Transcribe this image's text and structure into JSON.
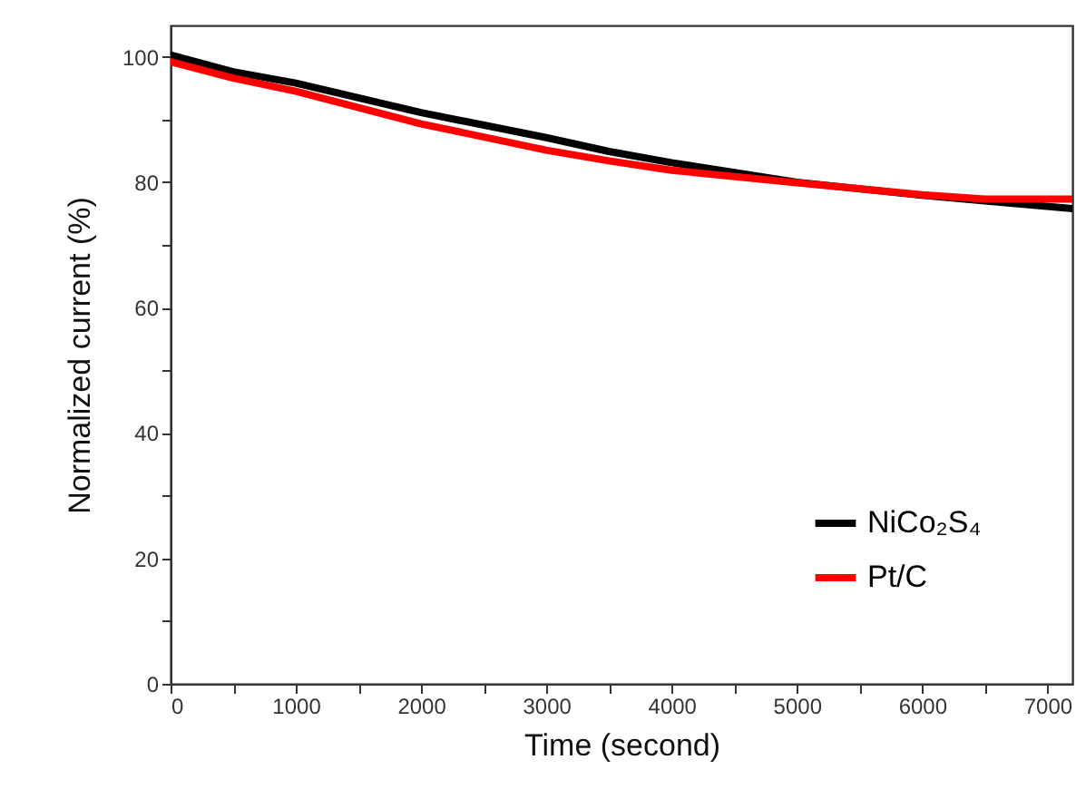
{
  "chart_data": {
    "type": "line",
    "xlabel": "Time (second)",
    "ylabel": "Normalized current (%)",
    "x": [
      0,
      500,
      1000,
      2000,
      3000,
      3500,
      4000,
      5000,
      6000,
      6500,
      7200
    ],
    "series": [
      {
        "name": "NiCo₂S₄",
        "color": "#000000",
        "values": [
          100.3,
          97.6,
          95.8,
          91.1,
          87.1,
          84.9,
          83.1,
          80.0,
          77.9,
          77.0,
          75.8
        ]
      },
      {
        "name": "Pt/C",
        "color": "#ff0000",
        "values": [
          99.2,
          96.6,
          94.5,
          89.3,
          85.1,
          83.4,
          81.9,
          79.9,
          78.0,
          77.3,
          77.3
        ]
      }
    ],
    "xlim": [
      0,
      7200
    ],
    "xticks": [
      0,
      {
        "value": 500,
        "label": null
      },
      1000,
      {
        "value": 1500,
        "label": null
      },
      2000,
      {
        "value": 2500,
        "label": null
      },
      3000,
      {
        "value": 3500,
        "label": null
      },
      4000,
      {
        "value": 4500,
        "label": null
      },
      5000,
      {
        "value": 5500,
        "label": null
      },
      6000,
      {
        "value": 6500,
        "label": null
      },
      7000
    ],
    "ylim": [
      0,
      105
    ],
    "yticks": [
      0,
      {
        "value": 10,
        "label": null
      },
      20,
      {
        "value": 30,
        "label": null
      },
      40,
      {
        "value": 50,
        "label": null
      },
      60,
      {
        "value": 70,
        "label": null
      },
      80,
      {
        "value": 90,
        "label": null
      },
      100
    ],
    "grid": false,
    "legend": "bottom right",
    "marker": "none",
    "line_style": "solid"
  }
}
